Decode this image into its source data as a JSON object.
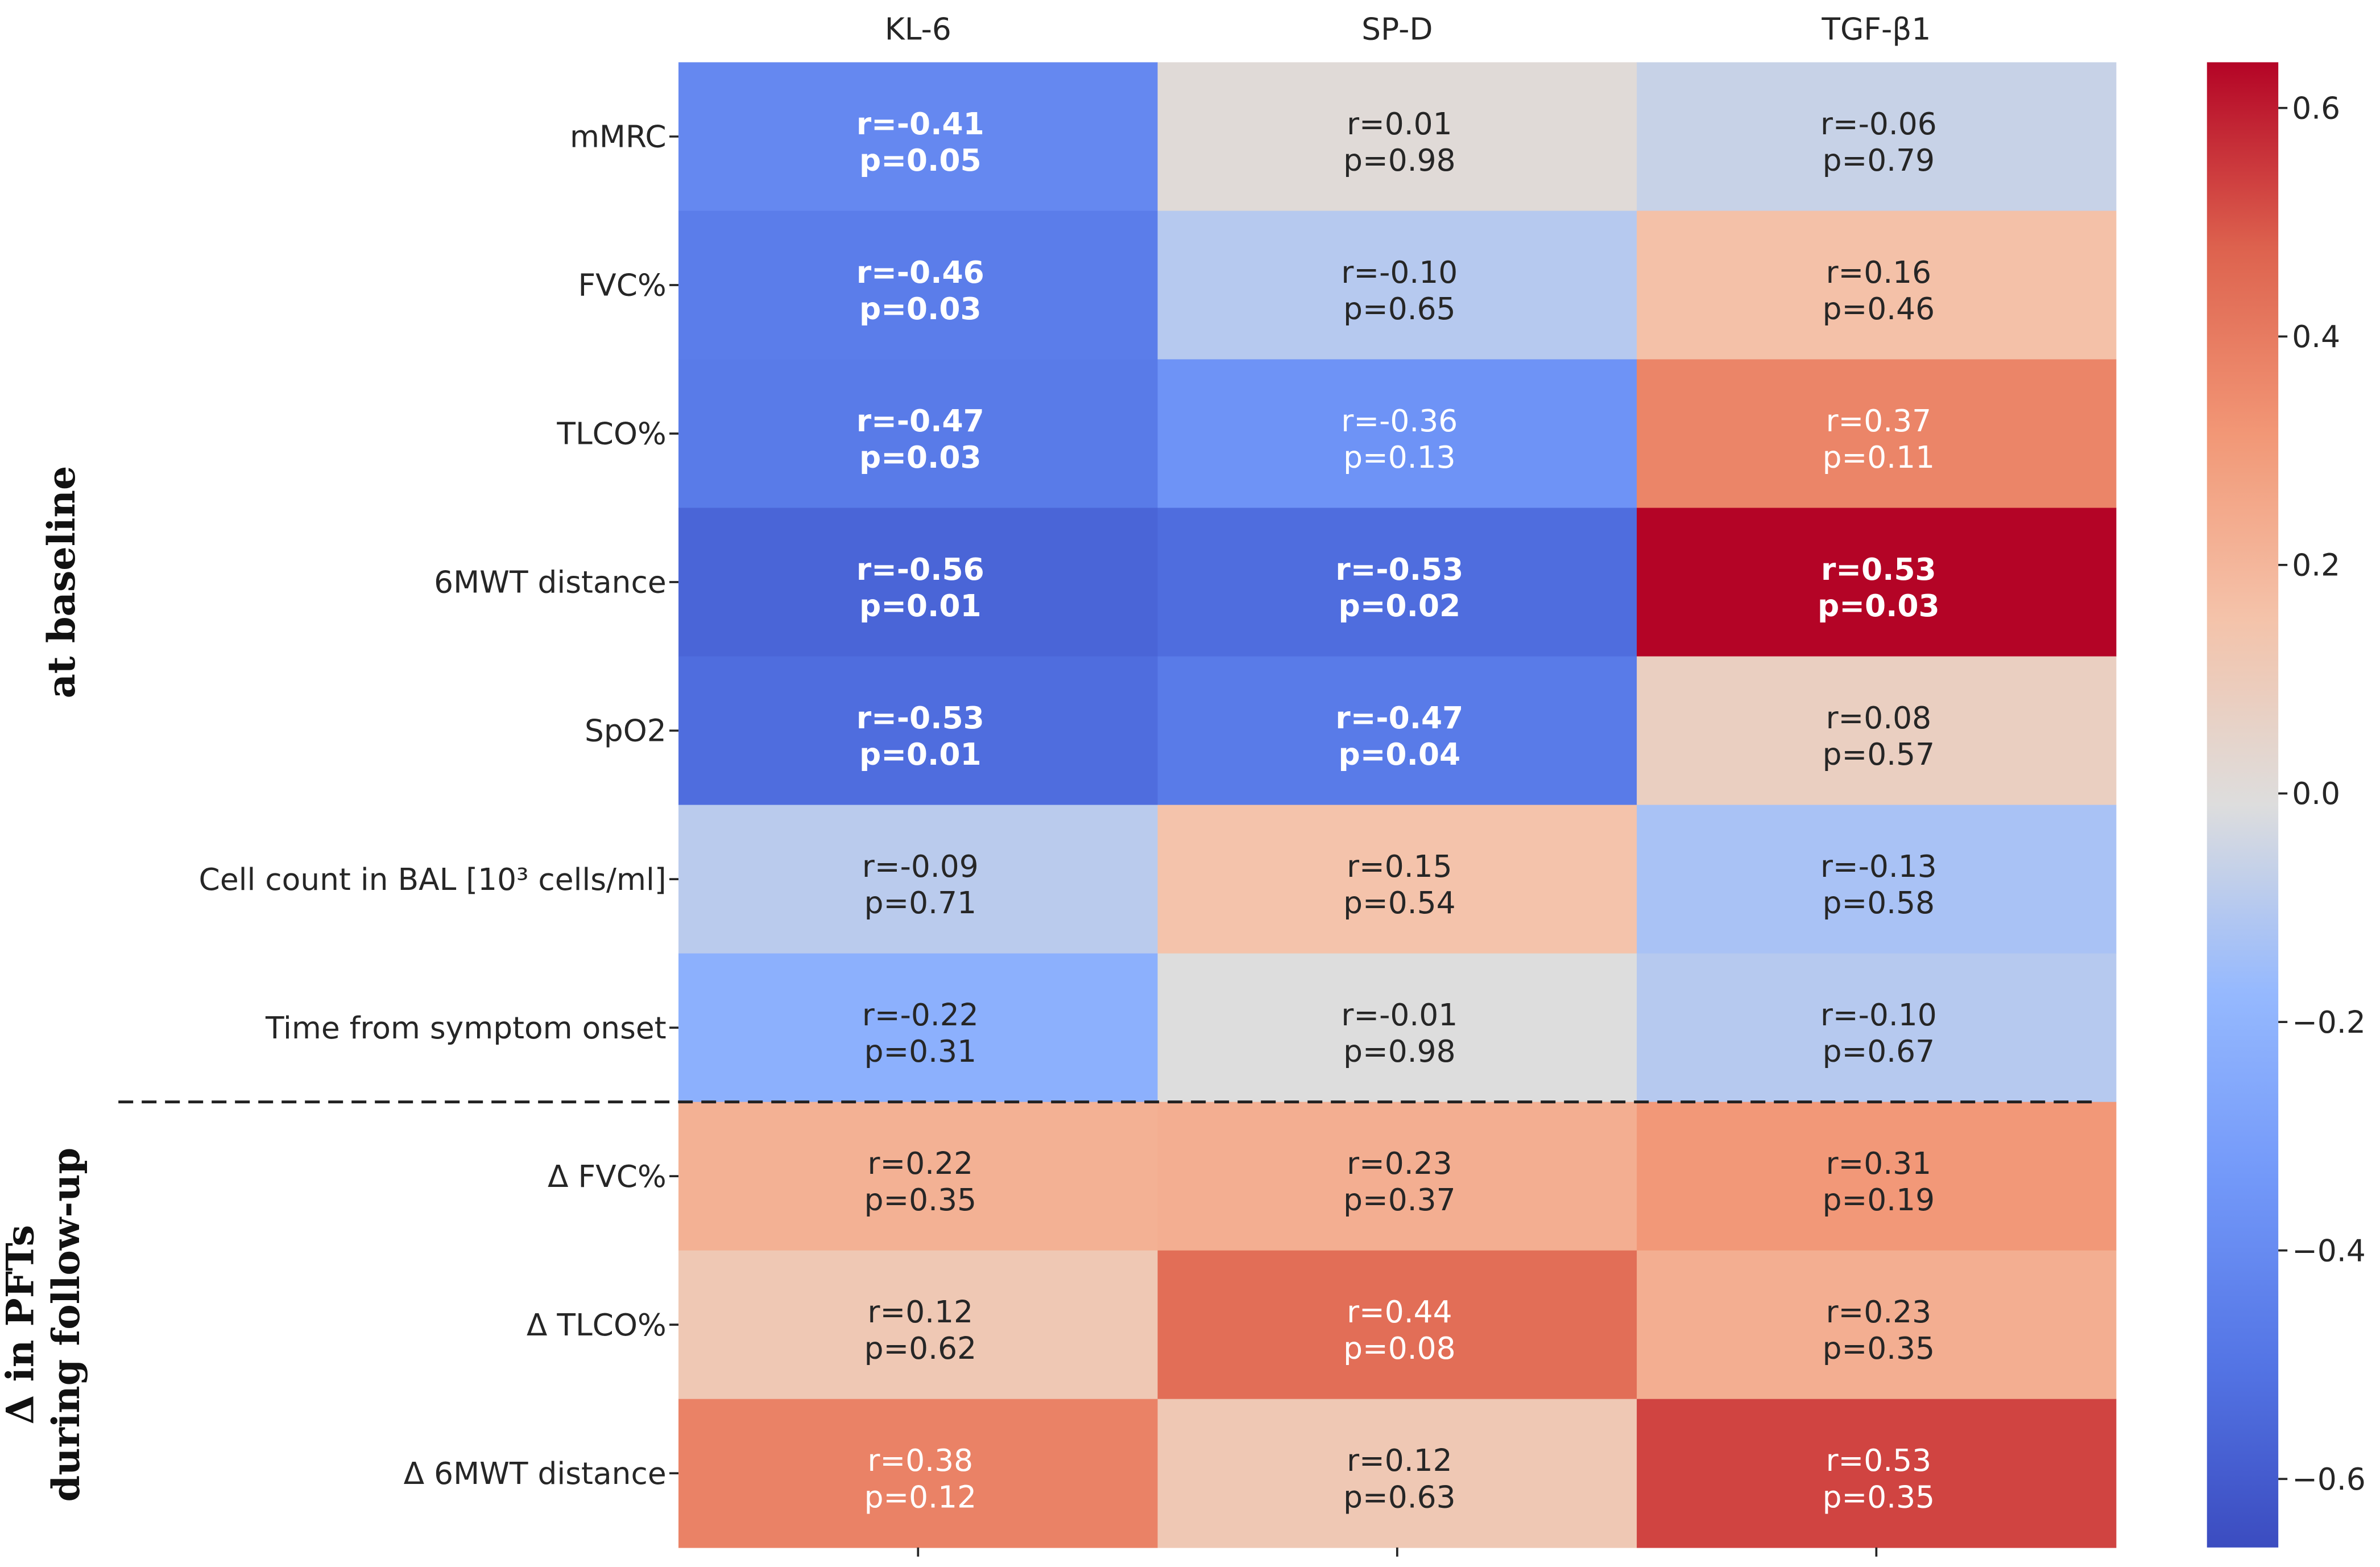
{
  "chart_data": {
    "type": "heatmap",
    "columns": [
      "KL-6",
      "SP-D",
      "TGF-β1"
    ],
    "rows": [
      "mMRC",
      "FVC%",
      "TLCO%",
      "6MWT distance",
      "SpO2",
      "Cell count in BAL [10³ cells/ml]",
      "Time from symptom onset",
      "Δ FVC%",
      "Δ TLCO%",
      "Δ 6MWT distance"
    ],
    "cells": [
      [
        {
          "r_label": "r=-0.41",
          "p_label": "p=0.05",
          "r": -0.41,
          "p": 0.05,
          "bold": true
        },
        {
          "r_label": "r=0.01",
          "p_label": "p=0.98",
          "r": 0.01,
          "p": 0.98,
          "bold": false
        },
        {
          "r_label": "r=-0.06",
          "p_label": "p=0.79",
          "r": -0.06,
          "p": 0.79,
          "bold": false
        }
      ],
      [
        {
          "r_label": "r=-0.46",
          "p_label": "p=0.03",
          "r": -0.46,
          "p": 0.03,
          "bold": true
        },
        {
          "r_label": "r=-0.10",
          "p_label": "p=0.65",
          "r": -0.1,
          "p": 0.65,
          "bold": false
        },
        {
          "r_label": "r=0.16",
          "p_label": "p=0.46",
          "r": 0.16,
          "p": 0.46,
          "bold": false
        }
      ],
      [
        {
          "r_label": "r=-0.47",
          "p_label": "p=0.03",
          "r": -0.47,
          "p": 0.03,
          "bold": true
        },
        {
          "r_label": "r=-0.36",
          "p_label": "p=0.13",
          "r": -0.36,
          "p": 0.13,
          "bold": false
        },
        {
          "r_label": "r=0.37",
          "p_label": "p=0.11",
          "r": 0.37,
          "p": 0.11,
          "bold": false
        }
      ],
      [
        {
          "r_label": "r=-0.56",
          "p_label": "p=0.01",
          "r": -0.56,
          "p": 0.01,
          "bold": true
        },
        {
          "r_label": "r=-0.53",
          "p_label": "p=0.02",
          "r": -0.53,
          "p": 0.02,
          "bold": true
        },
        {
          "r_label": "r=0.53",
          "p_label": "p=0.03",
          "r": 0.53,
          "p": 0.03,
          "bold": true,
          "fill": 0.64
        }
      ],
      [
        {
          "r_label": "r=-0.53",
          "p_label": "p=0.01",
          "r": -0.53,
          "p": 0.01,
          "bold": true
        },
        {
          "r_label": "r=-0.47",
          "p_label": "p=0.04",
          "r": -0.47,
          "p": 0.04,
          "bold": true
        },
        {
          "r_label": "r=0.08",
          "p_label": "p=0.57",
          "r": 0.08,
          "p": 0.57,
          "bold": false
        }
      ],
      [
        {
          "r_label": "r=-0.09",
          "p_label": "p=0.71",
          "r": -0.09,
          "p": 0.71,
          "bold": false
        },
        {
          "r_label": "r=0.15",
          "p_label": "p=0.54",
          "r": 0.15,
          "p": 0.54,
          "bold": false
        },
        {
          "r_label": "r=-0.13",
          "p_label": "p=0.58",
          "r": -0.13,
          "p": 0.58,
          "bold": false
        }
      ],
      [
        {
          "r_label": "r=-0.22",
          "p_label": "p=0.31",
          "r": -0.22,
          "p": 0.31,
          "bold": false
        },
        {
          "r_label": "r=-0.01",
          "p_label": "p=0.98",
          "r": -0.01,
          "p": 0.98,
          "bold": false
        },
        {
          "r_label": "r=-0.10",
          "p_label": "p=0.67",
          "r": -0.1,
          "p": 0.67,
          "bold": false
        }
      ],
      [
        {
          "r_label": "r=0.22",
          "p_label": "p=0.35",
          "r": 0.22,
          "p": 0.35,
          "bold": false
        },
        {
          "r_label": "r=0.23",
          "p_label": "p=0.37",
          "r": 0.23,
          "p": 0.37,
          "bold": false
        },
        {
          "r_label": "r=0.31",
          "p_label": "p=0.19",
          "r": 0.31,
          "p": 0.19,
          "bold": false
        }
      ],
      [
        {
          "r_label": "r=0.12",
          "p_label": "p=0.62",
          "r": 0.12,
          "p": 0.62,
          "bold": false
        },
        {
          "r_label": "r=0.44",
          "p_label": "p=0.08",
          "r": 0.44,
          "p": 0.08,
          "bold": false
        },
        {
          "r_label": "r=0.23",
          "p_label": "p=0.35",
          "r": 0.23,
          "p": 0.35,
          "bold": false
        }
      ],
      [
        {
          "r_label": "r=0.38",
          "p_label": "p=0.12",
          "r": 0.38,
          "p": 0.12,
          "bold": false
        },
        {
          "r_label": "r=0.12",
          "p_label": "p=0.63",
          "r": 0.12,
          "p": 0.63,
          "bold": false
        },
        {
          "r_label": "r=0.53",
          "p_label": "p=0.35",
          "r": 0.53,
          "p": 0.35,
          "bold": false
        }
      ]
    ],
    "groups": [
      {
        "label_lines": [
          "at baseline"
        ],
        "rows": [
          0,
          6
        ]
      },
      {
        "label_lines": [
          "Δ in PFTs",
          "during follow-up"
        ],
        "rows": [
          7,
          9
        ]
      }
    ],
    "group_separator_after_row": 6,
    "colorbar": {
      "vmin": -0.66,
      "vmax": 0.64,
      "ticks": [
        0.6,
        0.4,
        0.2,
        0.0,
        -0.2,
        -0.4,
        -0.6
      ],
      "tick_labels": [
        "0.6",
        "0.4",
        "0.2",
        "0.0",
        "−0.2",
        "−0.4",
        "−0.6"
      ],
      "colormap": "coolwarm"
    }
  }
}
